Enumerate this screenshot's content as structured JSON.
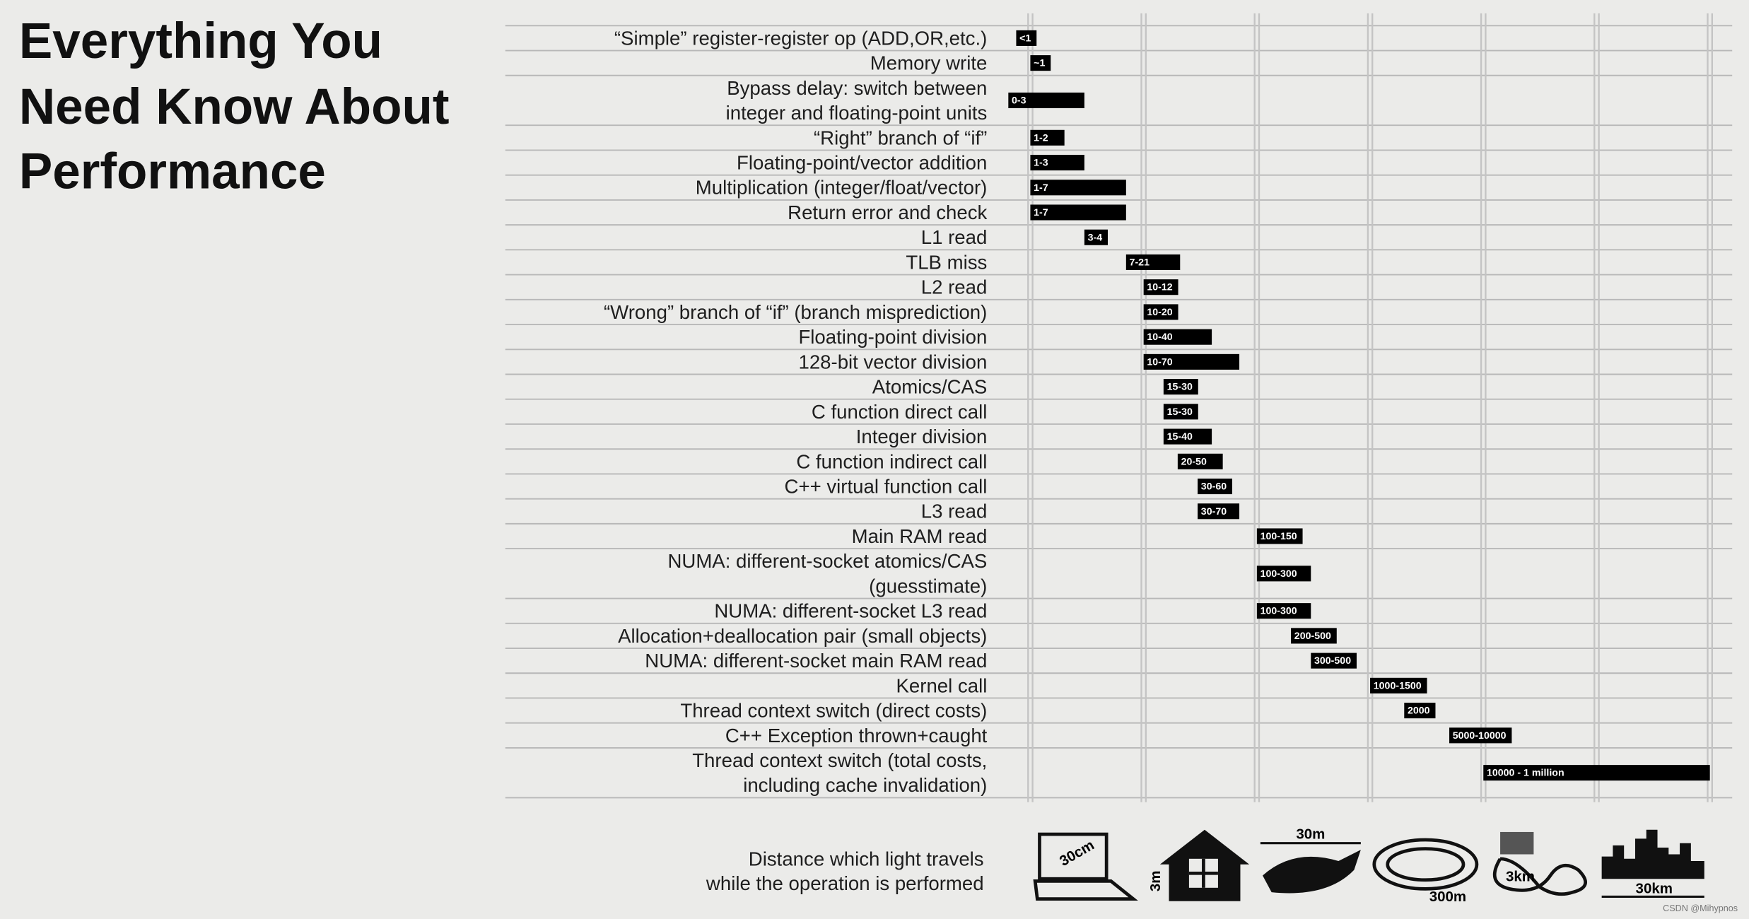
{
  "chart_data": {
    "type": "range-bar",
    "title": [
      "Everything You",
      "Need Know About",
      "Performance"
    ],
    "categories": [
      [
        "“Simple” register-register op (ADD,OR,etc.)"
      ],
      [
        "Memory write"
      ],
      [
        "Bypass delay: switch between",
        "integer and floating-point units"
      ],
      [
        "“Right” branch of “if”"
      ],
      [
        "Floating-point/vector addition"
      ],
      [
        "Multiplication (integer/float/vector)"
      ],
      [
        "Return error and check"
      ],
      [
        "L1 read"
      ],
      [
        "TLB miss"
      ],
      [
        "L2 read"
      ],
      [
        "“Wrong” branch of “if” (branch misprediction)"
      ],
      [
        "Floating-point division"
      ],
      [
        "128-bit vector division"
      ],
      [
        "Atomics/CAS"
      ],
      [
        "C function direct call"
      ],
      [
        "Integer division"
      ],
      [
        "C function indirect call"
      ],
      [
        "C++ virtual function call"
      ],
      [
        "L3 read"
      ],
      [
        "Main RAM read"
      ],
      [
        "NUMA: different-socket atomics/CAS",
        "(guesstimate)"
      ],
      [
        "NUMA: different-socket L3 read"
      ],
      [
        "Allocation+deallocation pair (small objects)"
      ],
      [
        "NUMA: different-socket main RAM read"
      ],
      [
        "Kernel call"
      ],
      [
        "Thread context switch (direct costs)"
      ],
      [
        "C++ Exception thrown+caught"
      ],
      [
        "Thread context switch (total costs,",
        "including cache invalidation)"
      ]
    ],
    "series": [
      {
        "color": "#000000",
        "values": [
          [
            0.75,
            1
          ],
          [
            1,
            1
          ],
          [
            0,
            3
          ],
          [
            1,
            2
          ],
          [
            1,
            3
          ],
          [
            1,
            7
          ],
          [
            1,
            7
          ],
          [
            3,
            4
          ],
          [
            7,
            21
          ],
          [
            10,
            12
          ],
          [
            10,
            20
          ],
          [
            10,
            40
          ],
          [
            10,
            70
          ],
          [
            15,
            30
          ],
          [
            15,
            30
          ],
          [
            15,
            40
          ],
          [
            20,
            50
          ],
          [
            30,
            60
          ],
          [
            30,
            70
          ],
          [
            100,
            150
          ],
          [
            100,
            300
          ],
          [
            100,
            300
          ],
          [
            200,
            500
          ],
          [
            300,
            500
          ],
          [
            1000,
            1500
          ],
          [
            2000,
            2000
          ],
          [
            5000,
            10000
          ],
          [
            10000,
            1000000
          ]
        ],
        "value_labels": [
          "<1",
          "~1",
          "0-3",
          "1-2",
          "1-3",
          "1-7",
          "1-7",
          "3-4",
          "7-21",
          "10-12",
          "10-20",
          "10-40",
          "10-70",
          "15-30",
          "15-30",
          "15-40",
          "20-50",
          "30-60",
          "30-70",
          "100-150",
          "100-300",
          "100-300",
          "200-500",
          "300-500",
          "1000-1500",
          "2000",
          "5000-10000",
          "10000 - 1 million"
        ]
      }
    ],
    "xscale": "log",
    "xlim": [
      0.7,
      1000000
    ],
    "xticks": [
      1,
      10,
      100,
      1000,
      10000,
      100000,
      1000000
    ],
    "grid": true
  },
  "light_distance": {
    "caption": [
      "Distance which light travels",
      "while the operation is performed"
    ],
    "labels": [
      "30cm",
      "3m",
      "30m",
      "300m",
      "3km",
      "30km"
    ]
  },
  "credit": "CSDN @Mihypnos"
}
